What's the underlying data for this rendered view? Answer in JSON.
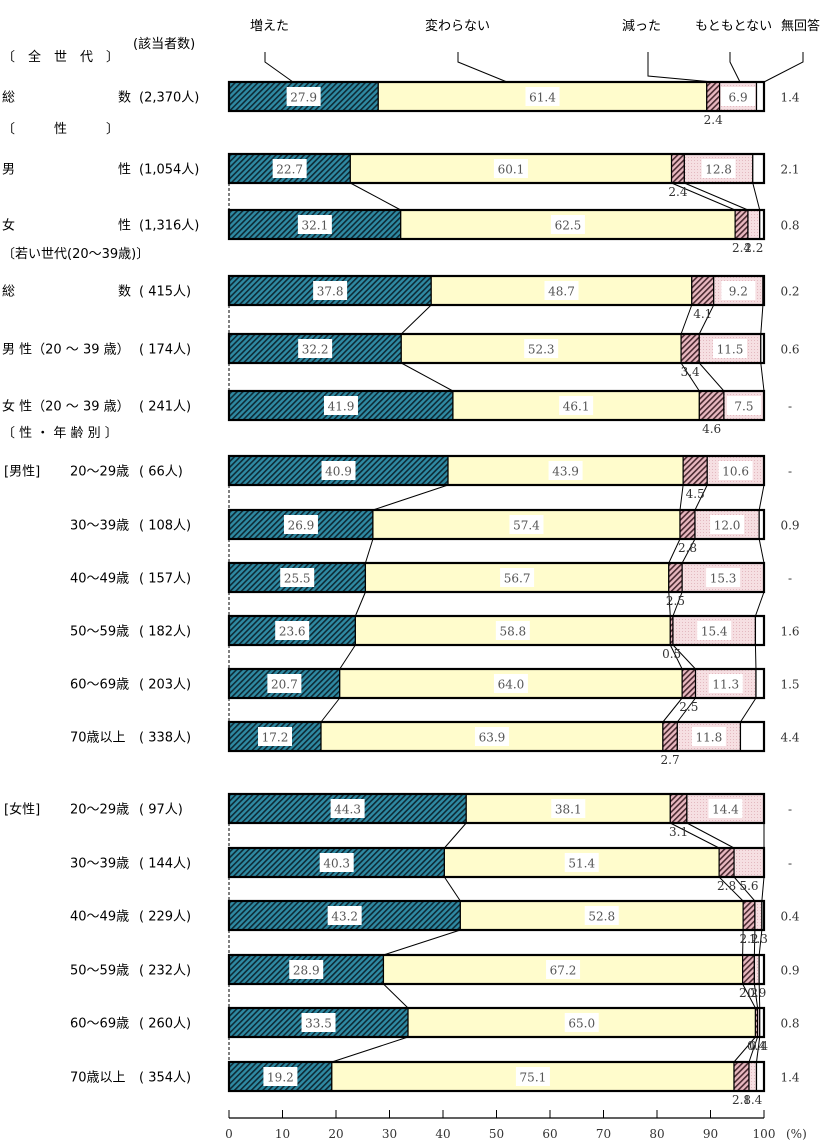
{
  "chart_data": {
    "type": "bar",
    "orientation": "horizontal-stacked-100",
    "title": "",
    "xlabel": "(%)",
    "ylabel": "",
    "xlim": [
      0,
      100
    ],
    "x_ticks": [
      0,
      10,
      20,
      30,
      40,
      50,
      60,
      70,
      80,
      90,
      100
    ],
    "count_header": "(該当者数)",
    "legend": [
      {
        "key": "increased",
        "label": "増えた",
        "color": "#2f8aa3",
        "pattern": "diagonal-hatch"
      },
      {
        "key": "unchanged",
        "label": "変わらない",
        "color": "#fffccc",
        "pattern": "solid"
      },
      {
        "key": "decreased",
        "label": "減った",
        "color": "#c98c99",
        "pattern": "diagonal-hatch"
      },
      {
        "key": "never_had",
        "label": "もともとない",
        "color": "#f6dfe2",
        "pattern": "dotted"
      },
      {
        "key": "no_answer",
        "label": "無回答",
        "color": "#ffffff",
        "pattern": "solid"
      }
    ],
    "sections": [
      {
        "header": "〔　全　世　代　〕",
        "rows": [
          0
        ]
      },
      {
        "header": "〔　　　性　　　〕",
        "rows": [
          1,
          2
        ]
      },
      {
        "header": "〔若い世代(20～39歳)〕",
        "rows": [
          3,
          4,
          5
        ]
      },
      {
        "header": "〔 性 ・ 年 齢 別 〕",
        "rows": [
          6,
          7,
          8,
          9,
          10,
          11,
          12,
          13,
          14,
          15,
          16,
          17
        ]
      }
    ],
    "rows": [
      {
        "group": "",
        "label_left": "総",
        "label_right": "数",
        "count": "(2,370人)",
        "values": [
          27.9,
          61.4,
          2.4,
          6.9,
          1.4
        ],
        "no_answer_label": "1.4"
      },
      {
        "group": "",
        "label_left": "男",
        "label_right": "性",
        "count": "(1,054人)",
        "values": [
          22.7,
          60.1,
          2.4,
          12.8,
          2.1
        ],
        "no_answer_label": "2.1"
      },
      {
        "group": "",
        "label_left": "女",
        "label_right": "性",
        "count": "(1,316人)",
        "values": [
          32.1,
          62.5,
          2.4,
          2.2,
          0.8
        ],
        "no_answer_label": "0.8"
      },
      {
        "group": "",
        "label_left": "総",
        "label_right": "数",
        "count": "( 415人)",
        "values": [
          37.8,
          48.7,
          4.1,
          9.2,
          0.2
        ],
        "no_answer_label": "0.2"
      },
      {
        "group": "",
        "label_left": "男 性（20 ～ 39 歳）",
        "label_right": "",
        "count": "( 174人)",
        "values": [
          32.2,
          52.3,
          3.4,
          11.5,
          0.6
        ],
        "no_answer_label": "0.6"
      },
      {
        "group": "",
        "label_left": "女 性（20 ～ 39 歳）",
        "label_right": "",
        "count": "( 241人)",
        "values": [
          41.9,
          46.1,
          4.6,
          7.5,
          0
        ],
        "no_answer_label": "-"
      },
      {
        "group": "[男性]",
        "label_left": "20～29歳",
        "label_right": "",
        "count": "(  66人)",
        "values": [
          40.9,
          43.9,
          4.5,
          10.6,
          0
        ],
        "no_answer_label": "-"
      },
      {
        "group": "",
        "label_left": "30～39歳",
        "label_right": "",
        "count": "( 108人)",
        "values": [
          26.9,
          57.4,
          2.8,
          12.0,
          0.9
        ],
        "no_answer_label": "0.9"
      },
      {
        "group": "",
        "label_left": "40～49歳",
        "label_right": "",
        "count": "( 157人)",
        "values": [
          25.5,
          56.7,
          2.5,
          15.3,
          0
        ],
        "no_answer_label": "-"
      },
      {
        "group": "",
        "label_left": "50～59歳",
        "label_right": "",
        "count": "( 182人)",
        "values": [
          23.6,
          58.8,
          0.5,
          15.4,
          1.6
        ],
        "no_answer_label": "1.6"
      },
      {
        "group": "",
        "label_left": "60～69歳",
        "label_right": "",
        "count": "( 203人)",
        "values": [
          20.7,
          64.0,
          2.5,
          11.3,
          1.5
        ],
        "no_answer_label": "1.5"
      },
      {
        "group": "",
        "label_left": "70歳以上",
        "label_right": "",
        "count": "( 338人)",
        "values": [
          17.2,
          63.9,
          2.7,
          11.8,
          4.4
        ],
        "no_answer_label": "4.4"
      },
      {
        "group": "[女性]",
        "label_left": "20～29歳",
        "label_right": "",
        "count": "(  97人)",
        "values": [
          44.3,
          38.1,
          3.1,
          14.4,
          0
        ],
        "no_answer_label": "-"
      },
      {
        "group": "",
        "label_left": "30～39歳",
        "label_right": "",
        "count": "( 144人)",
        "values": [
          40.3,
          51.4,
          2.8,
          5.6,
          0
        ],
        "no_answer_label": "-"
      },
      {
        "group": "",
        "label_left": "40～49歳",
        "label_right": "",
        "count": "( 229人)",
        "values": [
          43.2,
          52.8,
          2.2,
          1.3,
          0.4
        ],
        "no_answer_label": "0.4"
      },
      {
        "group": "",
        "label_left": "50～59歳",
        "label_right": "",
        "count": "( 232人)",
        "values": [
          28.9,
          67.2,
          2.2,
          0.9,
          0.9
        ],
        "no_answer_label": "0.9"
      },
      {
        "group": "",
        "label_left": "60～69歳",
        "label_right": "",
        "count": "( 260人)",
        "values": [
          33.5,
          65.0,
          0.4,
          0.4,
          0.8
        ],
        "no_answer_label": "0.8"
      },
      {
        "group": "",
        "label_left": "70歳以上",
        "label_right": "",
        "count": "( 354人)",
        "values": [
          19.2,
          75.1,
          2.8,
          1.4,
          1.4
        ],
        "no_answer_label": "1.4"
      }
    ]
  }
}
